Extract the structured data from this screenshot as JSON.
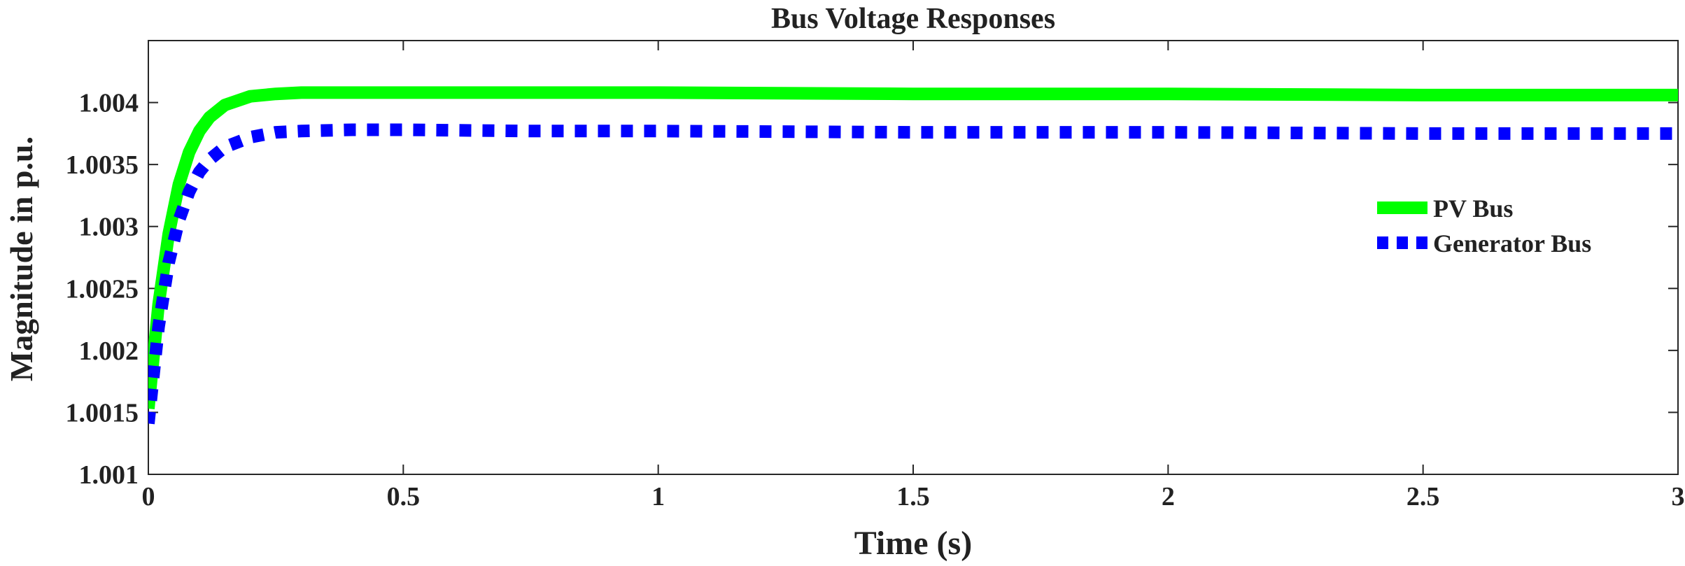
{
  "chart_data": {
    "type": "line",
    "title": "Bus Voltage Responses",
    "xlabel": "Time (s)",
    "ylabel": "Magnitude in p.u.",
    "xlim": [
      0,
      3
    ],
    "ylim": [
      1.001,
      1.0045
    ],
    "xticks": [
      0,
      0.5,
      1,
      1.5,
      2,
      2.5,
      3
    ],
    "xtick_labels": [
      "0",
      "0.5",
      "1",
      "1.5",
      "2",
      "2.5",
      "3"
    ],
    "yticks": [
      1.001,
      1.0015,
      1.002,
      1.0025,
      1.003,
      1.0035,
      1.004
    ],
    "ytick_labels": [
      "1.001",
      "1.0015",
      "1.002",
      "1.0025",
      "1.003",
      "1.0035",
      "1.004"
    ],
    "grid": false,
    "legend_position": "right",
    "series": [
      {
        "name": "PV Bus",
        "color": "#00ff00",
        "style": "solid",
        "x": [
          0,
          0.01,
          0.02,
          0.04,
          0.06,
          0.08,
          0.1,
          0.12,
          0.15,
          0.2,
          0.25,
          0.3,
          0.4,
          0.5,
          0.75,
          1.0,
          1.5,
          2.0,
          2.5,
          3.0
        ],
        "y": [
          1.00153,
          1.00195,
          1.00237,
          1.00294,
          1.00334,
          1.0036,
          1.00377,
          1.00388,
          1.00398,
          1.00405,
          1.00407,
          1.00408,
          1.00408,
          1.00408,
          1.00408,
          1.00408,
          1.00407,
          1.00407,
          1.00406,
          1.00406
        ]
      },
      {
        "name": "Generator Bus",
        "color": "#0000ff",
        "style": "dotted",
        "x": [
          0,
          0.01,
          0.02,
          0.04,
          0.06,
          0.08,
          0.1,
          0.12,
          0.15,
          0.2,
          0.25,
          0.3,
          0.4,
          0.5,
          0.75,
          1.0,
          1.5,
          2.0,
          2.5,
          3.0
        ],
        "y": [
          1.00141,
          1.0018,
          1.00219,
          1.00271,
          1.00305,
          1.00328,
          1.00344,
          1.00354,
          1.00364,
          1.00372,
          1.00376,
          1.00377,
          1.00378,
          1.00378,
          1.00377,
          1.00377,
          1.00376,
          1.00376,
          1.00375,
          1.00375
        ]
      }
    ]
  }
}
